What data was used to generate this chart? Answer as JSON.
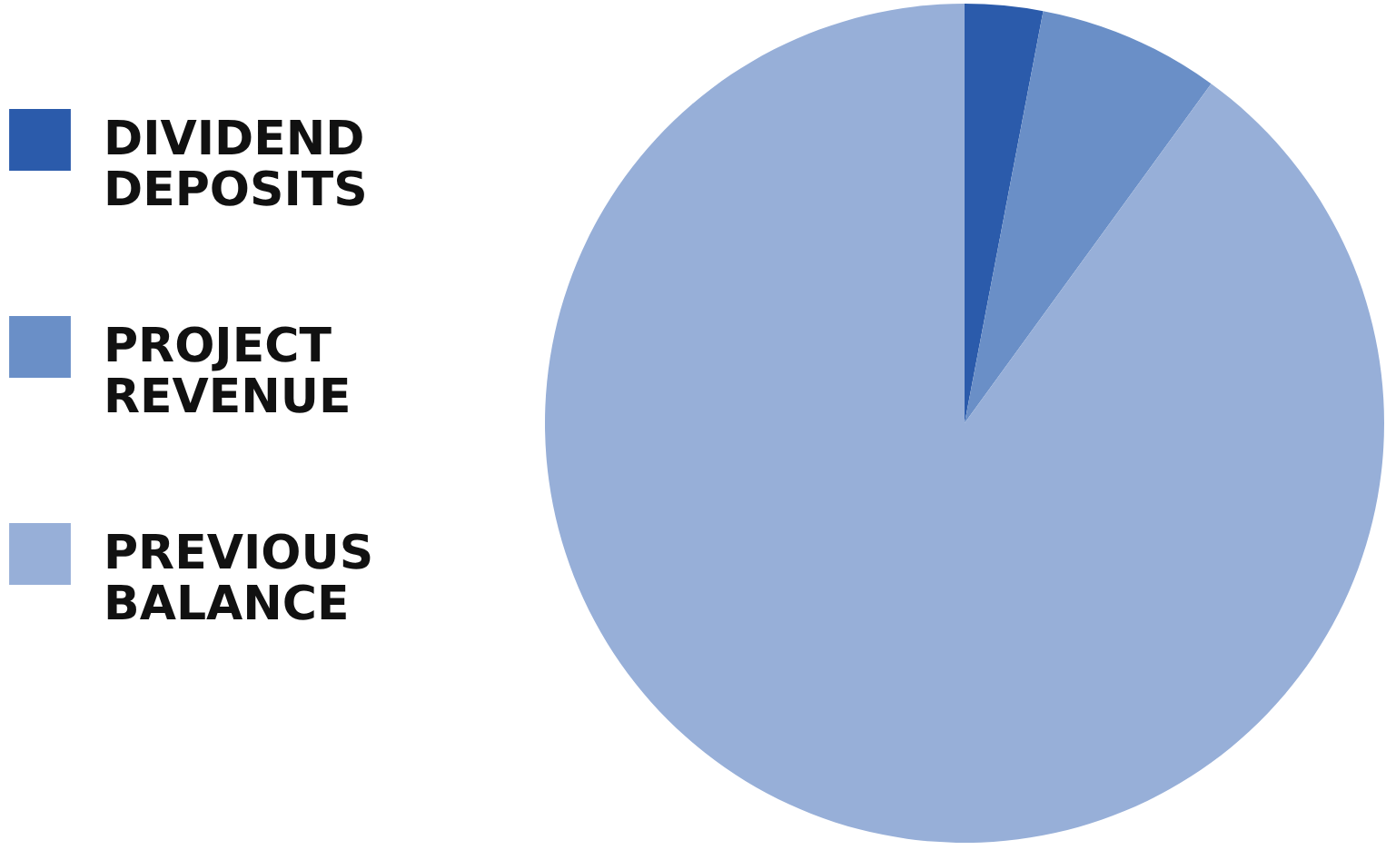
{
  "chart_data": {
    "type": "pie",
    "categories": [
      "DIVIDEND DEPOSITS",
      "PROJECT REVENUE",
      "PREVIOUS BALANCE"
    ],
    "values": [
      3,
      7,
      90
    ],
    "colors": [
      "#2b5bab",
      "#6a8fc7",
      "#97afd8"
    ],
    "legend": "left"
  }
}
